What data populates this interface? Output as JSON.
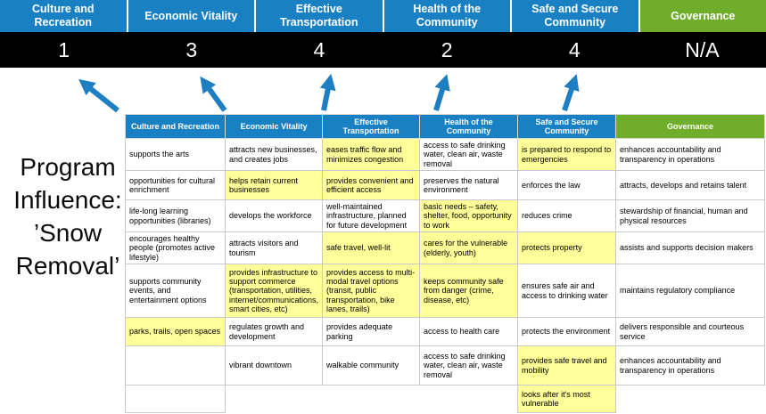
{
  "slide": {
    "program_title_lines": [
      "Program",
      "Influence:",
      "’Snow",
      "Removal’"
    ]
  },
  "colors": {
    "header_blue": "#1a80c4",
    "header_green": "#6fad2b",
    "score_bg": "#000000",
    "highlight_yellow": "#ffff99",
    "arrow_blue": "#1e7ec2",
    "grid_line": "#c9c9c9"
  },
  "scoreboard": {
    "columns": [
      {
        "id": "culture-and-recreation",
        "label": "Culture and Recreation",
        "score": "1",
        "theme": "blue"
      },
      {
        "id": "economic-vitality",
        "label": "Economic Vitality",
        "score": "3",
        "theme": "blue"
      },
      {
        "id": "effective-transportation",
        "label": "Effective Transportation",
        "score": "4",
        "theme": "blue"
      },
      {
        "id": "health-of-the-community",
        "label": "Health of the Community",
        "score": "2",
        "theme": "blue"
      },
      {
        "id": "safe-and-secure-community",
        "label": "Safe and Secure Community",
        "score": "4",
        "theme": "blue"
      },
      {
        "id": "governance",
        "label": "Governance",
        "score": "N/A",
        "theme": "green"
      }
    ]
  },
  "matrix": {
    "headers": [
      {
        "id": "culture-and-recreation",
        "label": "Culture and Recreation",
        "theme": "blue"
      },
      {
        "id": "economic-vitality",
        "label": "Economic Vitality",
        "theme": "blue"
      },
      {
        "id": "effective-transportation",
        "label": "Effective Transportation",
        "theme": "blue"
      },
      {
        "id": "health-of-the-community",
        "label": "Health of the Community",
        "theme": "blue"
      },
      {
        "id": "safe-and-secure-community",
        "label": "Safe and Secure Community",
        "theme": "blue"
      },
      {
        "id": "governance",
        "label": "Governance",
        "theme": "green"
      }
    ],
    "rows": [
      [
        {
          "text": "supports the arts",
          "highlight": false
        },
        {
          "text": "attracts new businesses, and creates jobs",
          "highlight": false
        },
        {
          "text": "eases traffic flow and minimizes congestion",
          "highlight": true
        },
        {
          "text": "access to safe drinking water, clean air, waste removal",
          "highlight": false
        },
        {
          "text": "is prepared to respond to emergencies",
          "highlight": true
        },
        {
          "text": "enhances accountability and transparency in operations",
          "highlight": false
        }
      ],
      [
        {
          "text": "opportunities for cultural enrichment",
          "highlight": false
        },
        {
          "text": "helps retain current businesses",
          "highlight": true
        },
        {
          "text": "provides convenient and efficient access",
          "highlight": true
        },
        {
          "text": "preserves the natural environment",
          "highlight": false
        },
        {
          "text": "enforces the law",
          "highlight": false
        },
        {
          "text": "attracts, develops and retains talent",
          "highlight": false
        }
      ],
      [
        {
          "text": "life-long learning opportunities (libraries)",
          "highlight": false
        },
        {
          "text": "develops the workforce",
          "highlight": false
        },
        {
          "text": "well-maintained infrastructure, planned for future development",
          "highlight": false
        },
        {
          "text": "basic needs – safety, shelter, food, opportunity to work",
          "highlight": true
        },
        {
          "text": "reduces crime",
          "highlight": false
        },
        {
          "text": "stewardship of financial, human and physical resources",
          "highlight": false
        }
      ],
      [
        {
          "text": "encourages healthy people (promotes active lifestyle)",
          "highlight": false
        },
        {
          "text": "attracts visitors and tourism",
          "highlight": false
        },
        {
          "text": "safe travel, well-lit",
          "highlight": true
        },
        {
          "text": "cares for the vulnerable (elderly, youth)",
          "highlight": true
        },
        {
          "text": "protects property",
          "highlight": true
        },
        {
          "text": "assists and supports decision makers",
          "highlight": false
        }
      ],
      [
        {
          "text": "supports community events, and entertainment options",
          "highlight": false
        },
        {
          "text": "provides infrastructure to support commerce (transportation, utilities, internet/communications, smart cities, etc)",
          "highlight": true
        },
        {
          "text": "provides access to multi-modal travel options (transit, public transportation, bike lanes, trails)",
          "highlight": true
        },
        {
          "text": "keeps community safe from danger (crime, disease, etc)",
          "highlight": true
        },
        {
          "text": "ensures safe air and access to drinking water",
          "highlight": false
        },
        {
          "text": "maintains regulatory compliance",
          "highlight": false
        }
      ],
      [
        {
          "text": "parks, trails, open spaces",
          "highlight": true
        },
        {
          "text": "regulates growth and development",
          "highlight": false
        },
        {
          "text": "provides adequate parking",
          "highlight": false
        },
        {
          "text": "access to health care",
          "highlight": false
        },
        {
          "text": "protects the environment",
          "highlight": false
        },
        {
          "text": "delivers responsible and courteous service",
          "highlight": false
        }
      ],
      [
        {
          "text": "",
          "highlight": false
        },
        {
          "text": "vibrant downtown",
          "highlight": false
        },
        {
          "text": "walkable community",
          "highlight": false
        },
        {
          "text": "access to safe drinking water, clean air, waste removal",
          "highlight": false
        },
        {
          "text": "provides safe travel and mobility",
          "highlight": true
        },
        {
          "text": "enhances accountability and transparency in operations",
          "highlight": false
        }
      ],
      [
        {
          "text": "",
          "highlight": false
        },
        {
          "text": "",
          "highlight": false,
          "ghost": true
        },
        {
          "text": "",
          "highlight": false,
          "ghost": true
        },
        {
          "text": "",
          "highlight": false,
          "ghost": true
        },
        {
          "text": "looks after it's most vulnerable",
          "highlight": true
        },
        {
          "text": "",
          "highlight": false,
          "ghost": true
        }
      ]
    ]
  }
}
